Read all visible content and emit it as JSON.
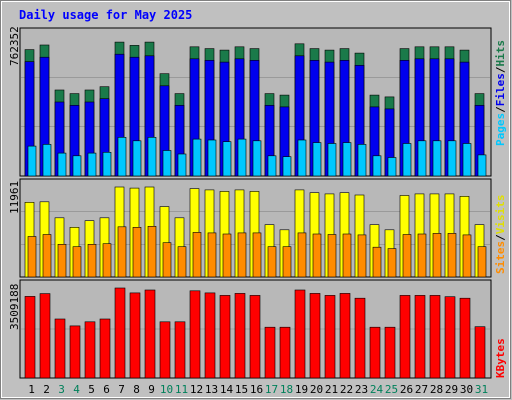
{
  "title": "Daily usage for May 2025",
  "panels": {
    "top": {
      "max_label": "762352",
      "legend": [
        "Pages",
        "/",
        "Files",
        "/",
        "Hits"
      ]
    },
    "middle": {
      "max_label": "11961",
      "legend": [
        "Sites",
        "/",
        "Visits"
      ]
    },
    "bottom": {
      "max_label": "3509188",
      "legend": [
        "KBytes"
      ]
    }
  },
  "colors": {
    "background": "#c0c0c0",
    "plot_bg": "#b8b8b8",
    "title": "#0000ff",
    "hits": "#1a7a4a",
    "files": "#0000ee",
    "pages": "#00c8ff",
    "visits": "#ffff00",
    "sites": "#ff8c00",
    "kbytes": "#ff0000",
    "weekend_day": "#00805a",
    "weekday": "#000000"
  },
  "chart_data": {
    "type": "bar",
    "categories": [
      "1",
      "2",
      "3",
      "4",
      "5",
      "6",
      "7",
      "8",
      "9",
      "10",
      "11",
      "12",
      "13",
      "14",
      "15",
      "16",
      "17",
      "18",
      "19",
      "20",
      "21",
      "22",
      "23",
      "24",
      "25",
      "26",
      "27",
      "28",
      "29",
      "30",
      "31"
    ],
    "weekend_days": [
      "3",
      "4",
      "10",
      "11",
      "17",
      "18",
      "24",
      "25",
      "31"
    ],
    "panels": [
      {
        "name": "hits-files-pages",
        "max": 762352,
        "series": [
          {
            "name": "Hits",
            "values": [
              719000,
              745000,
              489000,
              469000,
              489000,
              508000,
              762000,
              743000,
              762000,
              582000,
              469000,
              735000,
              725000,
              716000,
              735000,
              725000,
              469000,
              460000,
              752000,
              725000,
              716000,
              725000,
              699000,
              460000,
              450000,
              725000,
              735000,
              735000,
              735000,
              716000,
              469000
            ]
          },
          {
            "name": "Files",
            "values": [
              651000,
              676000,
              421000,
              402000,
              421000,
              440000,
              693000,
              676000,
              684000,
              513000,
              402000,
              667000,
              658000,
              648000,
              667000,
              658000,
              402000,
              393000,
              684000,
              658000,
              648000,
              658000,
              630000,
              393000,
              382000,
              658000,
              667000,
              667000,
              667000,
              648000,
              402000
            ]
          },
          {
            "name": "Pages",
            "values": [
              170000,
              180000,
              130000,
              115000,
              130000,
              135000,
              220000,
              200000,
              220000,
              145000,
              125000,
              210000,
              205000,
              195000,
              210000,
              200000,
              115000,
              110000,
              205000,
              190000,
              185000,
              190000,
              180000,
              115000,
              105000,
              185000,
              200000,
              200000,
              200000,
              185000,
              120000
            ]
          }
        ]
      },
      {
        "name": "visits-sites",
        "max": 11961,
        "series": [
          {
            "name": "Visits",
            "values": [
              9930,
              10000,
              7870,
              6600,
              7480,
              7870,
              11960,
              11810,
              11960,
              9350,
              7870,
              11750,
              11580,
              11380,
              11580,
              11380,
              6950,
              6270,
              11580,
              11210,
              11050,
              11210,
              10900,
              6950,
              6270,
              10830,
              11050,
              11050,
              11050,
              10720,
              6950
            ]
          },
          {
            "name": "Sites",
            "values": [
              5380,
              5650,
              4350,
              4030,
              4350,
              4430,
              6670,
              6600,
              6740,
              4560,
              4030,
              5930,
              5860,
              5720,
              5860,
              5860,
              4030,
              4030,
              5860,
              5720,
              5650,
              5720,
              5600,
              3960,
              3770,
              5650,
              5720,
              5790,
              5790,
              5600,
              4030
            ]
          }
        ]
      },
      {
        "name": "kbytes",
        "max": 3509188,
        "series": [
          {
            "name": "KBytes",
            "values": [
              3180000,
              3290000,
              2300000,
              2030000,
              2190000,
              2300000,
              3510000,
              3320000,
              3430000,
              2190000,
              2190000,
              3400000,
              3320000,
              3220000,
              3300000,
              3220000,
              1980000,
              1980000,
              3430000,
              3300000,
              3220000,
              3300000,
              3110000,
              1980000,
              1980000,
              3220000,
              3220000,
              3220000,
              3170000,
              3110000,
              2000000
            ]
          }
        ]
      }
    ]
  }
}
